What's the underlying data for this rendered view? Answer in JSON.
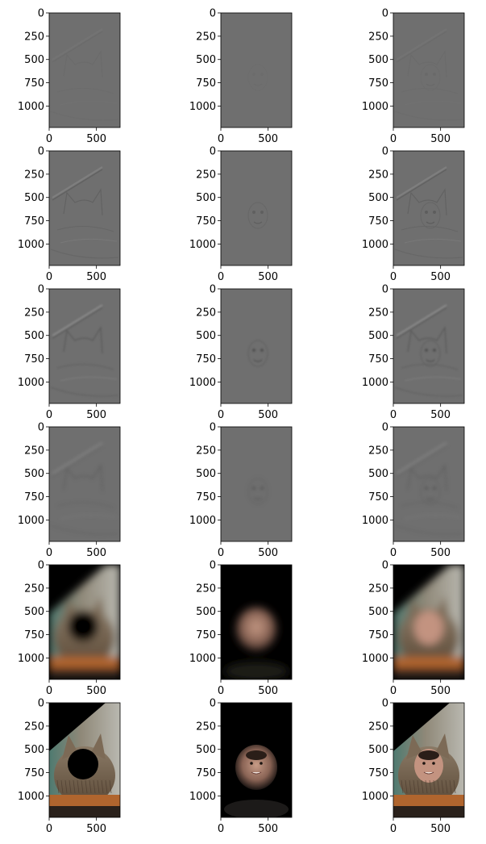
{
  "chart_data": {
    "type": "image-grid",
    "rows": 6,
    "cols": 3,
    "axes": {
      "x_ticks": [
        0,
        500
      ],
      "y_ticks": [
        0,
        250,
        500,
        750,
        1000
      ],
      "x_range": [
        0,
        750
      ],
      "y_range": [
        1230,
        0
      ]
    },
    "panels": [
      {
        "row": 0,
        "col": 0,
        "content": "highpass-gray",
        "subject": "cat",
        "strength": 0.1
      },
      {
        "row": 0,
        "col": 1,
        "content": "highpass-gray",
        "subject": "face",
        "strength": 0.05
      },
      {
        "row": 0,
        "col": 2,
        "content": "highpass-gray",
        "subject": "both",
        "strength": 0.1
      },
      {
        "row": 1,
        "col": 0,
        "content": "highpass-gray",
        "subject": "cat",
        "strength": 0.35
      },
      {
        "row": 1,
        "col": 1,
        "content": "highpass-gray",
        "subject": "face",
        "strength": 0.3
      },
      {
        "row": 1,
        "col": 2,
        "content": "highpass-gray",
        "subject": "both",
        "strength": 0.35
      },
      {
        "row": 2,
        "col": 0,
        "content": "highpass-gray",
        "subject": "cat",
        "strength": 0.6
      },
      {
        "row": 2,
        "col": 1,
        "content": "highpass-gray",
        "subject": "face",
        "strength": 0.6
      },
      {
        "row": 2,
        "col": 2,
        "content": "highpass-gray",
        "subject": "both",
        "strength": 0.6
      },
      {
        "row": 3,
        "col": 0,
        "content": "highpass-gray",
        "subject": "cat",
        "strength": 0.55
      },
      {
        "row": 3,
        "col": 1,
        "content": "highpass-gray",
        "subject": "face",
        "strength": 0.55
      },
      {
        "row": 3,
        "col": 2,
        "content": "highpass-gray",
        "subject": "both",
        "strength": 0.55
      },
      {
        "row": 4,
        "col": 0,
        "content": "lowpass-color",
        "subject": "cat",
        "strength": 1
      },
      {
        "row": 4,
        "col": 1,
        "content": "lowpass-color",
        "subject": "face",
        "strength": 1
      },
      {
        "row": 4,
        "col": 2,
        "content": "lowpass-color",
        "subject": "both",
        "strength": 1
      },
      {
        "row": 5,
        "col": 0,
        "content": "blend-color",
        "subject": "cat",
        "strength": 1
      },
      {
        "row": 5,
        "col": 1,
        "content": "blend-color",
        "subject": "face",
        "strength": 1
      },
      {
        "row": 5,
        "col": 2,
        "content": "blend-color",
        "subject": "both",
        "strength": 1
      }
    ]
  }
}
